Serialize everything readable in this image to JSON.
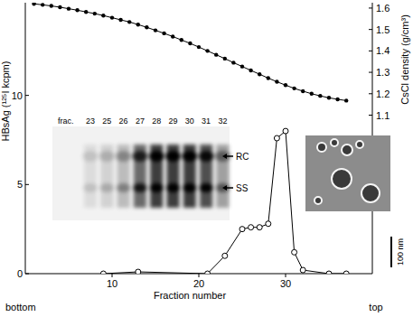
{
  "chart_data": {
    "type": "line",
    "x_label": "Fraction number",
    "y_label": "HBsAg (¹²⁵I kcpm)",
    "y2_label": "CsCl density (g/cm³)",
    "xlim": [
      0,
      40
    ],
    "xticks": [
      10,
      20,
      30
    ],
    "ylim": [
      0,
      15.2
    ],
    "yticks": [
      0,
      5,
      10
    ],
    "y2lim": [
      0.36,
      1.625
    ],
    "y2ticks": [
      1.1,
      1.2,
      1.3,
      1.4,
      1.5,
      1.6
    ],
    "grid": false,
    "series": [
      {
        "x": [
          9,
          13,
          21,
          23,
          25,
          26,
          27,
          28,
          29,
          30,
          31,
          32,
          35,
          37
        ],
        "values": [
          0,
          0.1,
          0,
          1.0,
          2.5,
          2.6,
          2.6,
          2.8,
          7.6,
          8.0,
          1.2,
          0.2,
          0,
          0
        ],
        "color": "#000000",
        "marker": "open-circle",
        "line_style": "solid"
      },
      {
        "x": [
          1,
          2,
          3,
          4,
          5,
          6,
          7,
          8,
          9,
          10,
          11,
          12,
          13,
          14,
          15,
          16,
          17,
          18,
          19,
          20,
          21,
          22,
          23,
          24,
          25,
          26,
          27,
          28,
          29,
          30,
          31,
          32,
          33,
          34,
          35,
          36,
          37
        ],
        "values": [
          1.62,
          1.615,
          1.61,
          1.604,
          1.597,
          1.59,
          1.582,
          1.574,
          1.565,
          1.555,
          1.545,
          1.535,
          1.523,
          1.51,
          1.496,
          1.482,
          1.467,
          1.451,
          1.435,
          1.418,
          1.4,
          1.382,
          1.364,
          1.345,
          1.327,
          1.309,
          1.291,
          1.273,
          1.256,
          1.24,
          1.225,
          1.212,
          1.2,
          1.19,
          1.181,
          1.174,
          1.168
        ],
        "axis": "y2",
        "color": "#000000",
        "marker": "dot",
        "line_style": "solid"
      }
    ],
    "annotations": {
      "x_ends": [
        "bottom",
        "top"
      ],
      "gel_inset": {
        "label": "frac.",
        "lanes": [
          "23",
          "25",
          "26",
          "27",
          "28",
          "29",
          "30",
          "31",
          "32"
        ],
        "bands": [
          "RC",
          "SS"
        ]
      },
      "em_inset": {
        "scale_bar": "100 nm"
      }
    }
  }
}
